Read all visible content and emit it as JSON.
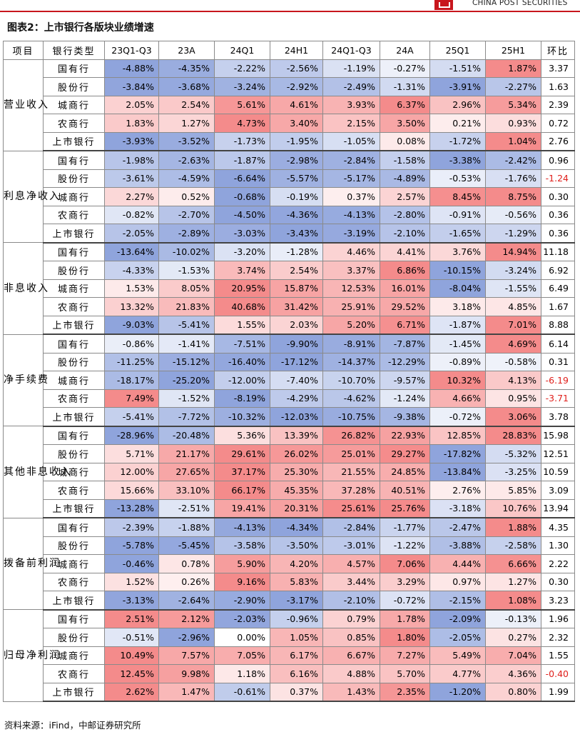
{
  "header": {
    "brand": "CHINA POST SECURITIES"
  },
  "caption": "图表2：上市银行各版块业绩增速",
  "table": {
    "columns": [
      "项目",
      "银行类型",
      "23Q1-Q3",
      "23A",
      "24Q1",
      "24H1",
      "24Q1-Q3",
      "24A",
      "25Q1",
      "25H1",
      "环比"
    ],
    "sections": [
      {
        "metric": "营业收入",
        "rows": [
          {
            "bank": "国有行",
            "values": [
              "-4.88%",
              "-4.35%",
              "-2.22%",
              "-2.56%",
              "-1.19%",
              "-0.27%",
              "-1.51%",
              "1.87%"
            ],
            "ratio": "3.37"
          },
          {
            "bank": "股份行",
            "values": [
              "-3.84%",
              "-3.68%",
              "-3.24%",
              "-2.92%",
              "-2.49%",
              "-1.31%",
              "-3.91%",
              "-2.27%"
            ],
            "ratio": "1.63"
          },
          {
            "bank": "城商行",
            "values": [
              "2.05%",
              "2.54%",
              "5.61%",
              "4.61%",
              "3.93%",
              "6.37%",
              "2.96%",
              "5.34%"
            ],
            "ratio": "2.39"
          },
          {
            "bank": "农商行",
            "values": [
              "1.83%",
              "1.27%",
              "4.73%",
              "3.40%",
              "2.15%",
              "3.50%",
              "0.21%",
              "0.93%"
            ],
            "ratio": "0.72"
          },
          {
            "bank": "上市银行",
            "values": [
              "-3.93%",
              "-3.52%",
              "-1.73%",
              "-1.95%",
              "-1.05%",
              "0.08%",
              "-1.72%",
              "1.04%"
            ],
            "ratio": "2.76"
          }
        ]
      },
      {
        "metric": "利息净收入",
        "rows": [
          {
            "bank": "国有行",
            "values": [
              "-1.98%",
              "-2.63%",
              "-1.87%",
              "-2.98%",
              "-2.84%",
              "-1.58%",
              "-3.38%",
              "-2.42%"
            ],
            "ratio": "0.96"
          },
          {
            "bank": "股份行",
            "values": [
              "-3.61%",
              "-4.59%",
              "-6.64%",
              "-5.57%",
              "-5.17%",
              "-4.89%",
              "-0.53%",
              "-1.76%"
            ],
            "ratio": "-1.24"
          },
          {
            "bank": "城商行",
            "values": [
              "2.27%",
              "0.52%",
              "-0.68%",
              "-0.19%",
              "0.37%",
              "2.57%",
              "8.45%",
              "8.75%"
            ],
            "ratio": "0.30"
          },
          {
            "bank": "农商行",
            "values": [
              "-0.82%",
              "-2.70%",
              "-4.50%",
              "-4.36%",
              "-4.13%",
              "-2.80%",
              "-0.91%",
              "-0.56%"
            ],
            "ratio": "0.36"
          },
          {
            "bank": "上市银行",
            "values": [
              "-2.05%",
              "-2.89%",
              "-3.03%",
              "-3.43%",
              "-3.19%",
              "-2.10%",
              "-1.65%",
              "-1.29%"
            ],
            "ratio": "0.36"
          }
        ]
      },
      {
        "metric": "非息收入",
        "rows": [
          {
            "bank": "国有行",
            "values": [
              "-13.64%",
              "-10.02%",
              "-3.20%",
              "-1.28%",
              "4.46%",
              "4.41%",
              "3.76%",
              "14.94%"
            ],
            "ratio": "11.18"
          },
          {
            "bank": "股份行",
            "values": [
              "-4.33%",
              "-1.53%",
              "3.74%",
              "2.54%",
              "3.37%",
              "6.86%",
              "-10.15%",
              "-3.24%"
            ],
            "ratio": "6.92"
          },
          {
            "bank": "城商行",
            "values": [
              "1.53%",
              "8.05%",
              "20.95%",
              "15.87%",
              "12.53%",
              "16.01%",
              "-8.04%",
              "-1.55%"
            ],
            "ratio": "6.49"
          },
          {
            "bank": "农商行",
            "values": [
              "13.32%",
              "21.83%",
              "40.68%",
              "31.42%",
              "25.91%",
              "29.52%",
              "3.18%",
              "4.85%"
            ],
            "ratio": "1.67"
          },
          {
            "bank": "上市银行",
            "values": [
              "-9.03%",
              "-5.41%",
              "1.55%",
              "2.03%",
              "5.20%",
              "6.71%",
              "-1.87%",
              "7.01%"
            ],
            "ratio": "8.88"
          }
        ]
      },
      {
        "metric": "净手续费",
        "rows": [
          {
            "bank": "国有行",
            "values": [
              "-0.86%",
              "-1.41%",
              "-7.51%",
              "-9.90%",
              "-8.91%",
              "-7.87%",
              "-1.45%",
              "4.69%"
            ],
            "ratio": "6.14"
          },
          {
            "bank": "股份行",
            "values": [
              "-11.25%",
              "-15.12%",
              "-16.40%",
              "-17.12%",
              "-14.37%",
              "-12.29%",
              "-0.89%",
              "-0.58%"
            ],
            "ratio": "0.31"
          },
          {
            "bank": "城商行",
            "values": [
              "-18.17%",
              "-25.20%",
              "-12.00%",
              "-7.40%",
              "-10.70%",
              "-9.57%",
              "10.32%",
              "4.13%"
            ],
            "ratio": "-6.19"
          },
          {
            "bank": "农商行",
            "values": [
              "7.49%",
              "-1.52%",
              "-8.19%",
              "-4.29%",
              "-4.62%",
              "-1.24%",
              "4.66%",
              "0.95%"
            ],
            "ratio": "-3.71"
          },
          {
            "bank": "上市银行",
            "values": [
              "-5.41%",
              "-7.72%",
              "-10.32%",
              "-12.03%",
              "-10.75%",
              "-9.38%",
              "-0.72%",
              "3.06%"
            ],
            "ratio": "3.78"
          }
        ]
      },
      {
        "metric": "其他非息收入",
        "rows": [
          {
            "bank": "国有行",
            "values": [
              "-28.96%",
              "-20.48%",
              "5.36%",
              "13.39%",
              "26.82%",
              "22.93%",
              "12.85%",
              "28.83%"
            ],
            "ratio": "15.98"
          },
          {
            "bank": "股份行",
            "values": [
              "5.71%",
              "21.17%",
              "29.61%",
              "26.02%",
              "25.01%",
              "29.27%",
              "-17.82%",
              "-5.32%"
            ],
            "ratio": "12.51"
          },
          {
            "bank": "城商行",
            "values": [
              "12.00%",
              "27.65%",
              "37.17%",
              "25.30%",
              "21.55%",
              "24.85%",
              "-13.84%",
              "-3.25%"
            ],
            "ratio": "10.59"
          },
          {
            "bank": "农商行",
            "values": [
              "15.66%",
              "33.10%",
              "66.17%",
              "45.35%",
              "37.28%",
              "40.51%",
              "2.76%",
              "5.85%"
            ],
            "ratio": "3.09"
          },
          {
            "bank": "上市银行",
            "values": [
              "-13.28%",
              "-2.51%",
              "19.41%",
              "20.31%",
              "25.61%",
              "25.76%",
              "-3.18%",
              "10.76%"
            ],
            "ratio": "13.94"
          }
        ]
      },
      {
        "metric": "拨备前利润",
        "rows": [
          {
            "bank": "国有行",
            "values": [
              "-2.39%",
              "-1.88%",
              "-4.13%",
              "-4.34%",
              "-2.84%",
              "-1.77%",
              "-2.47%",
              "1.88%"
            ],
            "ratio": "4.35"
          },
          {
            "bank": "股份行",
            "values": [
              "-5.78%",
              "-5.45%",
              "-3.58%",
              "-3.50%",
              "-3.01%",
              "-1.22%",
              "-3.88%",
              "-2.58%"
            ],
            "ratio": "1.30"
          },
          {
            "bank": "城商行",
            "values": [
              "-0.46%",
              "0.78%",
              "5.90%",
              "4.20%",
              "4.57%",
              "7.06%",
              "4.44%",
              "6.66%"
            ],
            "ratio": "2.22"
          },
          {
            "bank": "农商行",
            "values": [
              "1.52%",
              "0.26%",
              "9.16%",
              "5.83%",
              "3.44%",
              "3.29%",
              "0.97%",
              "1.27%"
            ],
            "ratio": "0.30"
          },
          {
            "bank": "上市银行",
            "values": [
              "-3.13%",
              "-2.64%",
              "-2.90%",
              "-3.17%",
              "-2.10%",
              "-0.72%",
              "-2.15%",
              "1.08%"
            ],
            "ratio": "3.23"
          }
        ]
      },
      {
        "metric": "归母净利润",
        "rows": [
          {
            "bank": "国有行",
            "values": [
              "2.51%",
              "2.12%",
              "-2.03%",
              "-0.96%",
              "0.79%",
              "1.78%",
              "-2.09%",
              "-0.13%"
            ],
            "ratio": "1.96"
          },
          {
            "bank": "股份行",
            "values": [
              "-0.51%",
              "-2.96%",
              "0.00%",
              "1.05%",
              "0.85%",
              "1.80%",
              "-2.05%",
              "0.27%"
            ],
            "ratio": "2.32"
          },
          {
            "bank": "城商行",
            "values": [
              "10.49%",
              "7.57%",
              "7.05%",
              "6.17%",
              "6.67%",
              "7.27%",
              "5.49%",
              "7.04%"
            ],
            "ratio": "1.55"
          },
          {
            "bank": "农商行",
            "values": [
              "12.45%",
              "9.98%",
              "1.18%",
              "6.16%",
              "4.88%",
              "5.70%",
              "4.77%",
              "4.36%"
            ],
            "ratio": "-0.40"
          },
          {
            "bank": "上市银行",
            "values": [
              "2.62%",
              "1.47%",
              "-0.61%",
              "0.37%",
              "1.43%",
              "2.35%",
              "-1.20%",
              "0.80%"
            ],
            "ratio": "1.99"
          }
        ]
      }
    ]
  },
  "source": "资料来源：iFind，中邮证券研究所"
}
